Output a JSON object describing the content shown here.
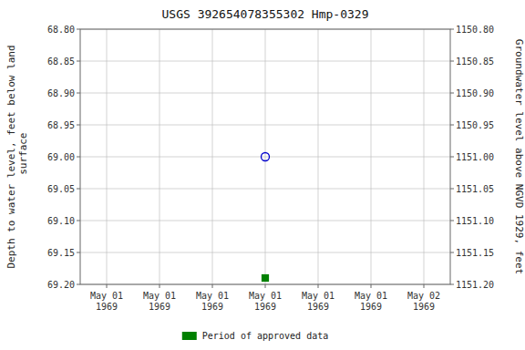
{
  "chart_data": {
    "type": "scatter",
    "title": "USGS 392654078355302  Hmp-0329",
    "ylabel": "Depth to water level, feet below land\n surface",
    "y2label": "Groundwater level above NGVD 1929, feet",
    "categories": [
      "May 01\n1969",
      "May 01\n1969",
      "May 01\n1969",
      "May 01\n1969",
      "May 01\n1969",
      "May 01\n1969",
      "May 02\n1969"
    ],
    "series": [
      {
        "color": "#0000cc",
        "marker": "open-circle",
        "values": [
          null,
          null,
          null,
          69.0,
          null,
          null,
          null
        ]
      },
      {
        "name": "Period of approved data",
        "color": "#008000",
        "marker": "square",
        "values": [
          null,
          null,
          null,
          69.19,
          null,
          null,
          null
        ]
      }
    ],
    "ylim": [
      69.2,
      68.8
    ],
    "yticks": [
      {
        "value": 68.8,
        "label": "68.80"
      },
      68.85,
      {
        "value": 68.9,
        "label": "68.90"
      },
      68.95,
      {
        "value": 69.0,
        "label": "69.00"
      },
      69.05,
      {
        "value": 69.1,
        "label": "69.10"
      },
      69.15,
      {
        "value": 69.2,
        "label": "69.20"
      }
    ],
    "y2lim": [
      1151.2,
      1150.8
    ],
    "y2ticks": [
      {
        "value": 1151.2,
        "label": "1151.20"
      },
      1151.15,
      {
        "value": 1151.1,
        "label": "1151.10"
      },
      1151.05,
      {
        "value": 1151.0,
        "label": "1151.00"
      },
      1150.95,
      {
        "value": 1150.9,
        "label": "1150.90"
      },
      1150.85,
      {
        "value": 1150.8,
        "label": "1150.80"
      }
    ],
    "grid": true,
    "legend": "bottom",
    "background_color": "#ffffff",
    "grid_color": "#c0c0c0"
  }
}
